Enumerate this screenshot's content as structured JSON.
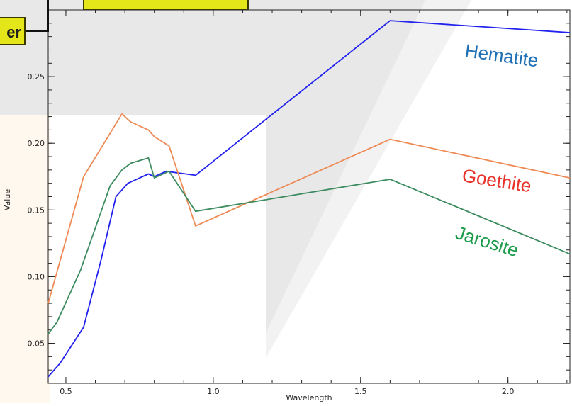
{
  "callout": {
    "label": "er"
  },
  "chart_data": {
    "type": "line",
    "title": "",
    "xlabel": "Wavelength",
    "ylabel": "Value",
    "xlim": [
      0.44,
      2.21
    ],
    "ylim": [
      0.02,
      0.3
    ],
    "xticks": [
      0.5,
      1.0,
      1.5,
      2.0
    ],
    "xtick_labels": [
      "0.5",
      "1.0",
      "1.5",
      "2.0"
    ],
    "yticks": [
      0.05,
      0.1,
      0.15,
      0.2,
      0.25
    ],
    "ytick_labels": [
      "0.05",
      "0.10",
      "0.15",
      "0.20",
      "0.25"
    ],
    "grid": false,
    "series": [
      {
        "name": "Hematite",
        "color": "#2222ee",
        "label_color": "#1f6fb5",
        "x": [
          0.44,
          0.48,
          0.56,
          0.62,
          0.67,
          0.71,
          0.78,
          0.8,
          0.84,
          0.94,
          1.6,
          2.21
        ],
        "y": [
          0.025,
          0.035,
          0.062,
          0.113,
          0.16,
          0.17,
          0.177,
          0.175,
          0.179,
          0.176,
          0.292,
          0.283
        ]
      },
      {
        "name": "Goethite",
        "color": "#ee8a55",
        "label_color": "#e8322a",
        "x": [
          0.44,
          0.56,
          0.69,
          0.72,
          0.78,
          0.8,
          0.85,
          0.94,
          1.6,
          2.21
        ],
        "y": [
          0.08,
          0.175,
          0.222,
          0.216,
          0.21,
          0.205,
          0.198,
          0.138,
          0.203,
          0.174
        ]
      },
      {
        "name": "Jarosite",
        "color": "#3c8c60",
        "label_color": "#1a9b4a",
        "x": [
          0.44,
          0.47,
          0.55,
          0.65,
          0.69,
          0.72,
          0.78,
          0.8,
          0.85,
          0.94,
          1.6,
          2.21
        ],
        "y": [
          0.057,
          0.066,
          0.105,
          0.168,
          0.18,
          0.185,
          0.189,
          0.174,
          0.179,
          0.149,
          0.173,
          0.117
        ]
      }
    ]
  }
}
